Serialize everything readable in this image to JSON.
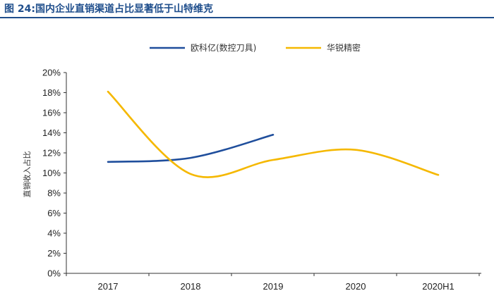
{
  "figure": {
    "title": "图 24:国内企业直销渠道占比显著低于山特维克"
  },
  "chart_data": {
    "type": "line",
    "title": "",
    "xlabel": "",
    "ylabel": "直销收入占比",
    "categories": [
      "2017",
      "2018",
      "2019",
      "2020",
      "2020H1"
    ],
    "ylim": [
      0,
      20
    ],
    "yticks": [
      "0%",
      "2%",
      "4%",
      "6%",
      "8%",
      "10%",
      "12%",
      "14%",
      "16%",
      "18%",
      "20%"
    ],
    "legend_position": "top-center",
    "grid": false,
    "smooth": true,
    "series": [
      {
        "name": "欧科亿(数控刀具)",
        "color": "#1f4e9c",
        "values": [
          11.1,
          11.5,
          13.8,
          null,
          null
        ]
      },
      {
        "name": "华锐精密",
        "color": "#f5b800",
        "values": [
          18.1,
          9.9,
          11.3,
          12.3,
          9.8
        ]
      }
    ]
  }
}
